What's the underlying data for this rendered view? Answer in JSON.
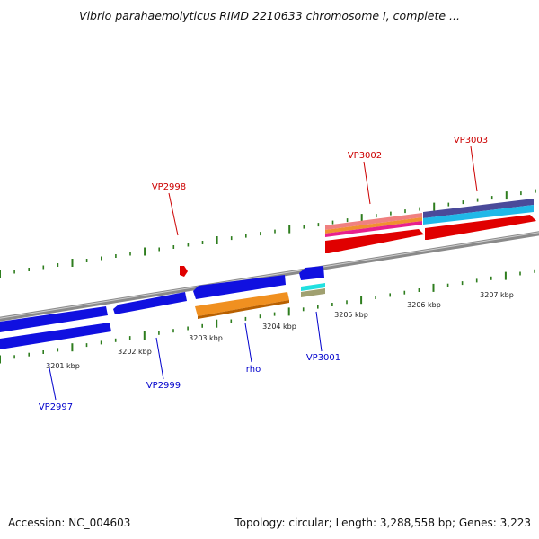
{
  "title": "Vibrio parahaemolyticus RIMD 2210633 chromosome I, complete ...",
  "footer": {
    "accession": "Accession: NC_004603",
    "summary": "Topology: circular; Length: 3,288,558 bp; Genes: 3,223"
  },
  "colors": {
    "backbone": "#8a8a8a",
    "tick": "#2e7d1e",
    "forward_gene": "#e00000",
    "reverse_gene": "#1010e0",
    "forward_label": "#cc0000",
    "reverse_label": "#0000cc"
  },
  "ticks": [
    {
      "label": "3201 kbp"
    },
    {
      "label": "3202 kbp"
    },
    {
      "label": "3203 kbp"
    },
    {
      "label": "3204 kbp"
    },
    {
      "label": "3205 kbp"
    },
    {
      "label": "3206 kbp"
    },
    {
      "label": "3207 kbp"
    }
  ],
  "gene_labels": {
    "forward": [
      {
        "name": "VP2998"
      },
      {
        "name": "VP3002"
      },
      {
        "name": "VP3003"
      }
    ],
    "reverse": [
      {
        "name": "VP2997"
      },
      {
        "name": "VP2999"
      },
      {
        "name": "rho"
      },
      {
        "name": "VP3001"
      }
    ]
  }
}
